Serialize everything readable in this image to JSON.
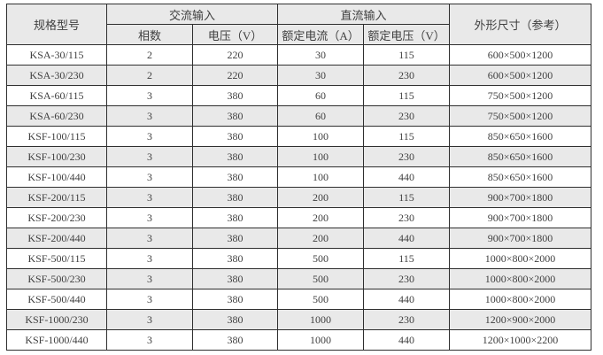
{
  "table": {
    "header": {
      "col_model": "规格型号",
      "group_ac_input": "交流输入",
      "group_dc_input": "直流输入",
      "col_phases": "相数",
      "col_ac_voltage": "电压（V）",
      "col_rated_current": "额定电流（A）",
      "col_rated_voltage": "额定电压（V）",
      "col_dimensions": "外形尺寸（参考）"
    },
    "column_keys": [
      "cell-model",
      "cell-phases",
      "cell-ac-voltage",
      "cell-rated-current",
      "cell-rated-voltage",
      "cell-dimensions"
    ],
    "rows": [
      [
        "KSA-30/115",
        "2",
        "220",
        "30",
        "115",
        "600×500×1200"
      ],
      [
        "KSA-30/230",
        "2",
        "220",
        "30",
        "230",
        "600×500×1200"
      ],
      [
        "KSA-60/115",
        "3",
        "380",
        "60",
        "115",
        "750×500×1200"
      ],
      [
        "KSA-60/230",
        "3",
        "380",
        "60",
        "230",
        "750×500×1200"
      ],
      [
        "KSF-100/115",
        "3",
        "380",
        "100",
        "115",
        "850×650×1600"
      ],
      [
        "KSF-100/230",
        "3",
        "380",
        "100",
        "230",
        "850×650×1600"
      ],
      [
        "KSF-100/440",
        "3",
        "380",
        "100",
        "440",
        "850×650×1600"
      ],
      [
        "KSF-200/115",
        "3",
        "380",
        "200",
        "115",
        "900×700×1800"
      ],
      [
        "KSF-200/230",
        "3",
        "380",
        "200",
        "230",
        "900×700×1800"
      ],
      [
        "KSF-200/440",
        "3",
        "380",
        "200",
        "440",
        "900×700×1800"
      ],
      [
        "KSF-500/115",
        "3",
        "380",
        "500",
        "115",
        "1000×800×2000"
      ],
      [
        "KSF-500/230",
        "3",
        "380",
        "500",
        "230",
        "1000×800×2000"
      ],
      [
        "KSF-500/440",
        "3",
        "380",
        "500",
        "440",
        "1000×800×2000"
      ],
      [
        "KSF-1000/230",
        "3",
        "380",
        "1000",
        "230",
        "1200×900×2000"
      ],
      [
        "KSF-1000/440",
        "3",
        "380",
        "1000",
        "440",
        "1200×1000×2200"
      ]
    ],
    "colors": {
      "header_bg": "#e9e9e9",
      "alt_row_bg": "#e9e9e9",
      "row_bg": "#ffffff",
      "border": "#2f2f2f",
      "text": "#3f3f3f",
      "page_bg": "#ffffff"
    }
  }
}
